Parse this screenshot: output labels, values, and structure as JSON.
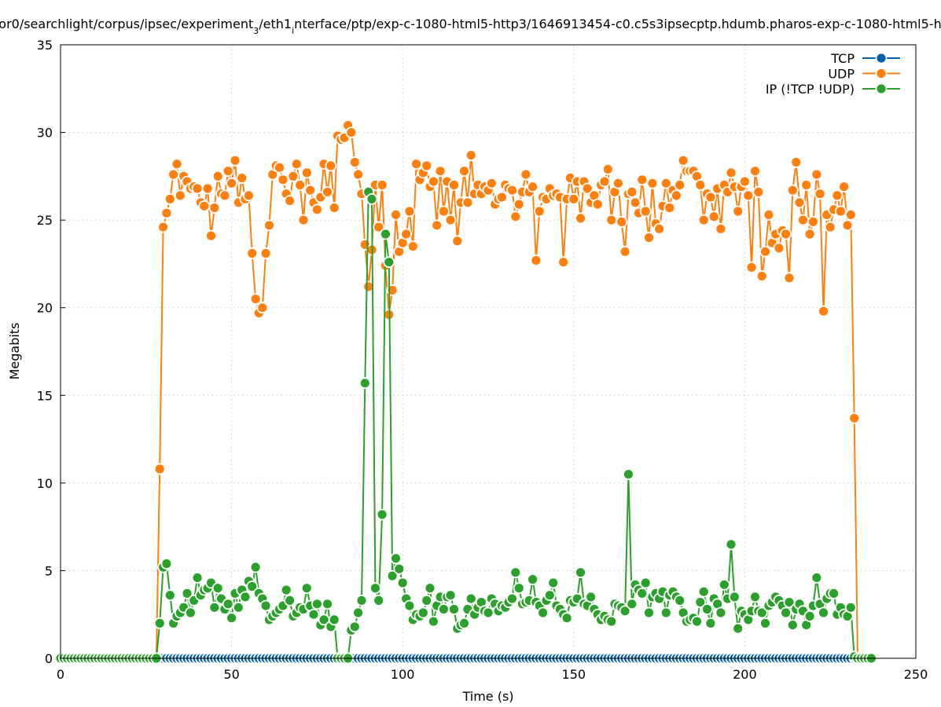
{
  "chart_data": {
    "type": "line",
    "title_parts": [
      {
        "text": "or0/searchlight/corpus/ipsec/experiment",
        "sub": false
      },
      {
        "text": "3",
        "sub": true
      },
      {
        "text": "/eth1",
        "sub": false
      },
      {
        "text": "i",
        "sub": true
      },
      {
        "text": "nterface/ptp/exp-c-1080-html5-http3/1646913454-c0.c5s3ipsecptp.hdumb.pharos-exp-c-1080-html5-h",
        "sub": false
      }
    ],
    "xlabel": "Time (s)",
    "ylabel": "Megabits",
    "xlim": [
      0,
      250
    ],
    "ylim": [
      0,
      35
    ],
    "xticks": [
      "0",
      "50",
      "100",
      "150",
      "200",
      "250"
    ],
    "yticks": [
      "0",
      "5",
      "10",
      "15",
      "20",
      "25",
      "30",
      "35"
    ],
    "grid": true,
    "legend_position": "top-right",
    "x_start": 0,
    "x_step": 1,
    "series": [
      {
        "name": "TCP",
        "color": "#0060ad",
        "values": [
          0,
          0,
          0,
          0,
          0,
          0,
          0,
          0,
          0,
          0,
          0,
          0,
          0,
          0,
          0,
          0,
          0,
          0,
          0,
          0,
          0,
          0,
          0,
          0,
          0,
          0,
          0,
          0,
          0,
          0,
          0,
          0,
          0,
          0,
          0,
          0,
          0,
          0,
          0,
          0,
          0,
          0,
          0,
          0,
          0,
          0,
          0,
          0,
          0,
          0,
          0,
          0,
          0,
          0,
          0,
          0,
          0,
          0,
          0,
          0,
          0,
          0,
          0,
          0,
          0,
          0,
          0,
          0,
          0,
          0,
          0,
          0,
          0,
          0,
          0,
          0,
          0,
          0,
          0,
          0,
          0,
          0,
          0,
          0,
          0,
          0,
          0,
          0,
          0,
          0,
          0,
          0,
          0,
          0,
          0,
          0,
          0,
          0,
          0,
          0,
          0,
          0,
          0,
          0,
          0,
          0,
          0,
          0,
          0,
          0,
          0,
          0,
          0,
          0,
          0,
          0,
          0,
          0,
          0,
          0,
          0,
          0,
          0,
          0,
          0,
          0,
          0,
          0,
          0,
          0,
          0,
          0,
          0,
          0,
          0,
          0,
          0,
          0,
          0,
          0,
          0,
          0,
          0,
          0,
          0,
          0,
          0,
          0,
          0,
          0,
          0,
          0,
          0,
          0,
          0,
          0,
          0,
          0,
          0,
          0,
          0,
          0,
          0,
          0,
          0,
          0,
          0,
          0,
          0,
          0,
          0,
          0,
          0,
          0,
          0,
          0,
          0,
          0,
          0,
          0,
          0,
          0,
          0,
          0,
          0,
          0,
          0,
          0,
          0,
          0,
          0,
          0,
          0,
          0,
          0,
          0,
          0,
          0,
          0,
          0,
          0,
          0,
          0,
          0,
          0,
          0,
          0,
          0,
          0,
          0,
          0,
          0,
          0,
          0,
          0,
          0,
          0,
          0,
          0,
          0,
          0,
          0,
          0,
          0,
          0,
          0,
          0,
          0,
          0,
          0,
          0,
          0,
          0,
          0,
          0,
          0,
          0,
          0
        ]
      },
      {
        "name": "UDP",
        "color": "#ff7f0e",
        "values": [
          0,
          0,
          0,
          0,
          0,
          0,
          0,
          0,
          0,
          0,
          0,
          0,
          0,
          0,
          0,
          0,
          0,
          0,
          0,
          0,
          0,
          0,
          0,
          0,
          0,
          0,
          0,
          0,
          0,
          10.8,
          24.6,
          25.4,
          26.2,
          27.6,
          28.2,
          26.4,
          27.5,
          27.2,
          26.8,
          26.9,
          26.8,
          26.0,
          25.8,
          26.8,
          24.1,
          25.7,
          27.5,
          26.5,
          26.4,
          27.8,
          27.1,
          28.4,
          26.0,
          27.4,
          26.2,
          26.4,
          23.1,
          20.5,
          19.7,
          20.0,
          23.1,
          24.7,
          27.6,
          28.1,
          28.0,
          27.3,
          26.5,
          26.1,
          27.5,
          28.2,
          27.0,
          25.0,
          27.7,
          26.7,
          26.0,
          25.6,
          26.3,
          28.2,
          26.6,
          28.1,
          25.7,
          29.8,
          29.6,
          29.7,
          30.4,
          30.0,
          28.3,
          27.6,
          26.5,
          23.6,
          21.2,
          23.3,
          27.0,
          24.6,
          27.0,
          22.4,
          19.6,
          21.0,
          25.3,
          23.2,
          23.7,
          24.2,
          25.5,
          23.5,
          28.2,
          27.3,
          27.7,
          28.1,
          26.9,
          27.2,
          24.7,
          27.8,
          25.5,
          27.2,
          25.0,
          27.0,
          23.8,
          26.0,
          27.8,
          26.0,
          28.7,
          26.5,
          27.0,
          26.5,
          26.9,
          26.7,
          27.1,
          25.9,
          26.2,
          26.3,
          27.0,
          26.8,
          26.7,
          25.2,
          25.9,
          26.6,
          27.6,
          26.6,
          26.9,
          22.7,
          25.5,
          26.3,
          26.2,
          26.8,
          26.4,
          26.5,
          26.3,
          22.6,
          26.2,
          27.4,
          26.2,
          27.2,
          25.1,
          27.2,
          26.8,
          26.0,
          26.4,
          25.9,
          27.0,
          27.2,
          27.9,
          25.0,
          26.6,
          27.1,
          24.9,
          23.2,
          26.5,
          26.6,
          26.0,
          25.4,
          27.3,
          25.5,
          24.0,
          27.1,
          24.8,
          24.5,
          25.8,
          27.1,
          25.7,
          26.7,
          26.4,
          27.0,
          28.4,
          27.8,
          27.8,
          27.8,
          27.5,
          27.0,
          25.0,
          26.5,
          26.3,
          25.2,
          26.8,
          24.5,
          27.0,
          26.6,
          27.7,
          26.9,
          25.5,
          26.9,
          27.2,
          26.4,
          22.3,
          27.8,
          26.6,
          21.8,
          23.2,
          25.3,
          23.7,
          24.2,
          23.4,
          24.4,
          24.2,
          21.7,
          26.7,
          28.3,
          26.0,
          25.0,
          27.0,
          24.2,
          24.9,
          27.6,
          26.5,
          19.8,
          25.3,
          24.6,
          25.6,
          26.4,
          25.5,
          26.9,
          24.7,
          25.3,
          13.7,
          0,
          0,
          0,
          0,
          0
        ]
      },
      {
        "name": "IP (!TCP  !UDP)",
        "color": "#2ca02c",
        "values": [
          0,
          0,
          0,
          0,
          0,
          0,
          0,
          0,
          0,
          0,
          0,
          0,
          0,
          0,
          0,
          0,
          0,
          0,
          0,
          0,
          0,
          0,
          0,
          0,
          0,
          0,
          0,
          0,
          0,
          2.0,
          5.2,
          5.4,
          3.6,
          2.0,
          2.4,
          2.6,
          2.9,
          3.7,
          2.6,
          3.3,
          4.6,
          3.6,
          3.9,
          4.0,
          4.3,
          2.9,
          4.0,
          3.4,
          2.8,
          3.1,
          2.3,
          3.7,
          2.9,
          3.9,
          3.5,
          4.4,
          4.1,
          5.2,
          3.7,
          3.4,
          3.0,
          2.2,
          2.4,
          2.6,
          2.8,
          3.0,
          3.9,
          3.3,
          2.4,
          2.6,
          2.9,
          2.8,
          4.0,
          3.0,
          2.5,
          3.1,
          1.9,
          2.2,
          3.1,
          1.8,
          2.2,
          0,
          0,
          0,
          0,
          1.6,
          1.8,
          2.6,
          3.3,
          15.7,
          26.6,
          26.2,
          4.0,
          3.3,
          8.2,
          24.2,
          22.6,
          4.7,
          5.7,
          5.1,
          4.3,
          3.4,
          3.0,
          2.2,
          2.5,
          2.4,
          2.6,
          3.3,
          4.0,
          2.1,
          3.0,
          3.5,
          2.8,
          3.5,
          3.6,
          2.8,
          1.7,
          1.9,
          2.0,
          2.8,
          3.4,
          2.5,
          2.9,
          3.2,
          2.7,
          2.6,
          3.4,
          3.1,
          2.7,
          3.0,
          2.9,
          3.2,
          3.4,
          4.9,
          4.0,
          3.1,
          3.2,
          3.3,
          4.5,
          3.2,
          3.0,
          2.6,
          3.3,
          3.6,
          4.3,
          3.0,
          2.8,
          2.5,
          2.3,
          3.3,
          3.2,
          3.4,
          4.9,
          3.1,
          3.0,
          3.5,
          2.8,
          2.5,
          2.2,
          2.4,
          2.2,
          2.1,
          3.1,
          3.0,
          2.9,
          2.7,
          10.5,
          3.1,
          4.2,
          3.9,
          3.7,
          4.3,
          2.6,
          3.5,
          3.7,
          3.4,
          3.8,
          2.6,
          3.6,
          3.8,
          3.5,
          3.3,
          2.6,
          2.1,
          2.2,
          2.3,
          2.1,
          3.2,
          3.8,
          2.8,
          2.0,
          3.4,
          3.1,
          2.6,
          4.2,
          3.4,
          6.5,
          3.5,
          1.7,
          2.7,
          2.5,
          2.2,
          2.7,
          3.5,
          2.7,
          2.6,
          2.0,
          3.0,
          3.2,
          3.5,
          3.3,
          3.0,
          2.6,
          3.2,
          1.9,
          2.8,
          3.1,
          2.7,
          1.9,
          2.4,
          3.0,
          4.6,
          3.1,
          2.6,
          3.4,
          3.7,
          3.7,
          2.5,
          2.9,
          2.5,
          2.4,
          2.9,
          0.1,
          0,
          0,
          0,
          0,
          0
        ]
      }
    ]
  }
}
